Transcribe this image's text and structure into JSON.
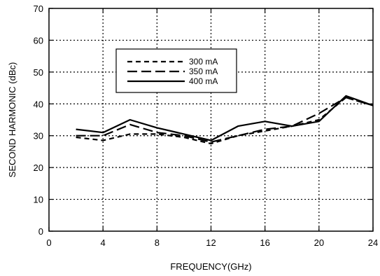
{
  "chart_data": {
    "type": "line",
    "title": "",
    "xlabel": "FREQUENCY(GHz)",
    "ylabel": "SECOND HARMONIC (dBc)",
    "xlim": [
      0,
      24
    ],
    "ylim": [
      0,
      70
    ],
    "xticks": [
      0,
      4,
      8,
      12,
      16,
      20,
      24
    ],
    "yticks": [
      0,
      10,
      20,
      30,
      40,
      50,
      60,
      70
    ],
    "grid": "dotted",
    "legend_position": "upper-middle",
    "series": [
      {
        "name": "300 mA",
        "style": "short-dash",
        "x": [
          2,
          4,
          6,
          8,
          10,
          12,
          14,
          16,
          18,
          20,
          22,
          24
        ],
        "y": [
          29.5,
          28.5,
          30.5,
          30.5,
          29.5,
          27.5,
          30,
          31.5,
          33,
          35,
          42,
          39.5
        ]
      },
      {
        "name": "350 mA",
        "style": "long-dash",
        "x": [
          2,
          4,
          6,
          8,
          10,
          12,
          14,
          16,
          18,
          20,
          22,
          24
        ],
        "y": [
          30,
          30,
          33.5,
          31,
          30,
          28,
          30,
          32,
          33,
          37,
          42,
          39.5
        ]
      },
      {
        "name": "400 mA",
        "style": "solid",
        "x": [
          2,
          4,
          6,
          8,
          10,
          12,
          14,
          16,
          18,
          20,
          22,
          24
        ],
        "y": [
          32,
          31,
          35,
          32.5,
          30.5,
          28.5,
          33,
          34.5,
          33,
          34.5,
          42.5,
          39.5
        ]
      }
    ]
  }
}
